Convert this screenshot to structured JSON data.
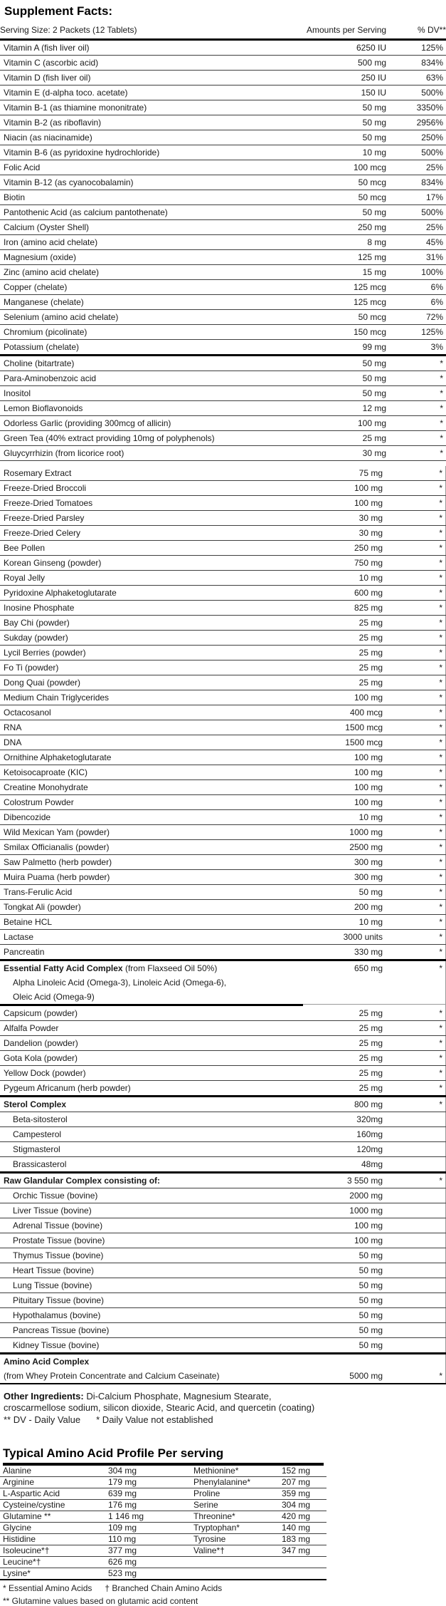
{
  "title": "Supplement Facts:",
  "colors": {
    "text": "#1a1a1a",
    "thin_line": "#3f3f3f",
    "thick_line": "#000000",
    "side_border": "#9a9a9a",
    "background": "#ffffff"
  },
  "main_table": {
    "serving_size": "Serving Size: 2 Packets (12 Tablets)",
    "col_amounts": "Amounts per Serving",
    "col_dv": "% DV**",
    "section1_rows": [
      {
        "n": "Vitamin A (fish liver oil)",
        "a": "6250 IU",
        "d": "125%"
      },
      {
        "n": "Vitamin C (ascorbic acid)",
        "a": "500 mg",
        "d": "834%"
      },
      {
        "n": "Vitamin D (fish liver oil)",
        "a": "250 IU",
        "d": "63%"
      },
      {
        "n": "Vitamin E (d-alpha toco. acetate)",
        "a": "150 IU",
        "d": "500%"
      },
      {
        "n": "Vitamin B-1 (as thiamine mononitrate)",
        "a": "50 mg",
        "d": "3350%"
      },
      {
        "n": "Vitamin B-2 (as riboflavin)",
        "a": "50 mg",
        "d": "2956%"
      },
      {
        "n": "Niacin (as niacinamide)",
        "a": "50 mg",
        "d": "250%"
      },
      {
        "n": "Vitamin B-6 (as pyridoxine hydrochloride)",
        "a": "10 mg",
        "d": "500%"
      },
      {
        "n": "Folic Acid",
        "a": "100 mcg",
        "d": "25%"
      },
      {
        "n": "Vitamin B-12 (as cyanocobalamin)",
        "a": "50 mcg",
        "d": "834%"
      },
      {
        "n": "Biotin",
        "a": "50 mcg",
        "d": "17%"
      },
      {
        "n": "Pantothenic Acid (as calcium pantothenate)",
        "a": "50 mg",
        "d": "500%"
      },
      {
        "n": "Calcium (Oyster Shell)",
        "a": "250 mg",
        "d": "25%"
      },
      {
        "n": "Iron (amino acid chelate)",
        "a": "8 mg",
        "d": "45%"
      },
      {
        "n": "Magnesium (oxide)",
        "a": "125 mg",
        "d": "31%"
      },
      {
        "n": "Zinc (amino acid chelate)",
        "a": "15 mg",
        "d": "100%"
      },
      {
        "n": "Copper (chelate)",
        "a": "125 mcg",
        "d": "6%"
      },
      {
        "n": "Manganese (chelate)",
        "a": "125 mcg",
        "d": "6%"
      },
      {
        "n": "Selenium (amino acid chelate)",
        "a": "50 mcg",
        "d": "72%"
      },
      {
        "n": "Chromium (picolinate)",
        "a": "150 mcg",
        "d": "125%"
      },
      {
        "n": "Potassium (chelate)",
        "a": "99 mg",
        "d": "3%",
        "div": "thick"
      },
      {
        "n": "Choline (bitartrate)",
        "a": "50 mg",
        "d": "*"
      },
      {
        "n": "Para-Aminobenzoic acid",
        "a": "50 mg",
        "d": "*"
      },
      {
        "n": "Inositol",
        "a": "50 mg",
        "d": "*"
      },
      {
        "n": "Lemon Bioflavonoids",
        "a": "12 mg",
        "d": "*"
      },
      {
        "n": "Odorless Garlic (providing 300mcg of allicin)",
        "a": "100 mg",
        "d": "*"
      },
      {
        "n": "Green Tea (40% extract providing 10mg of polyphenols)",
        "a": "25 mg",
        "d": "*"
      },
      {
        "n": "Gluycyrrhizin (from licorice root)",
        "a": "30 mg",
        "d": "*"
      }
    ],
    "section2_rows": [
      {
        "n": "Rosemary Extract",
        "a": "75 mg",
        "d": "*"
      },
      {
        "n": "Freeze-Dried Broccoli",
        "a": "100 mg",
        "d": "*"
      },
      {
        "n": "Freeze-Dried Tomatoes",
        "a": "100 mg",
        "d": "*"
      },
      {
        "n": "Freeze-Dried Parsley",
        "a": "30 mg",
        "d": "*"
      },
      {
        "n": "Freeze-Dried Celery",
        "a": "30 mg",
        "d": "*"
      },
      {
        "n": "Bee Pollen",
        "a": "250 mg",
        "d": "*"
      },
      {
        "n": "Korean Ginseng (powder)",
        "a": "750 mg",
        "d": "*"
      },
      {
        "n": "Royal Jelly",
        "a": "10 mg",
        "d": "*"
      },
      {
        "n": "Pyridoxine Alphaketoglutarate",
        "a": "600 mg",
        "d": "*"
      },
      {
        "n": "Inosine Phosphate",
        "a": "825 mg",
        "d": "*"
      },
      {
        "n": "Bay Chi (powder)",
        "a": "25 mg",
        "d": "*"
      },
      {
        "n": "Sukday (powder)",
        "a": "25 mg",
        "d": "*"
      },
      {
        "n": "Lycil Berries (powder)",
        "a": "25 mg",
        "d": "*"
      },
      {
        "n": "Fo Ti (powder)",
        "a": "25 mg",
        "d": "*"
      },
      {
        "n": "Dong Quai (powder)",
        "a": "25 mg",
        "d": "*"
      },
      {
        "n": "Medium Chain Triglycerides",
        "a": "100 mg",
        "d": "*"
      },
      {
        "n": "Octacosanol",
        "a": "400 mcg",
        "d": "*"
      },
      {
        "n": "RNA",
        "a": "1500 mcg",
        "d": "*"
      },
      {
        "n": "DNA",
        "a": "1500 mcg",
        "d": "*"
      },
      {
        "n": "Ornithine Alphaketoglutarate",
        "a": "100 mg",
        "d": "*"
      },
      {
        "n": "Ketoisocaproate (KIC)",
        "a": "100 mg",
        "d": "*"
      },
      {
        "n": "Creatine Monohydrate",
        "a": "100 mg",
        "d": "*"
      },
      {
        "n": "Colostrum Powder",
        "a": "100 mg",
        "d": "*"
      },
      {
        "n": "Dibencozide",
        "a": "10 mg",
        "d": "*"
      },
      {
        "n": "Wild Mexican Yam (powder)",
        "a": "1000 mg",
        "d": "*"
      },
      {
        "n": "Smilax Officianalis (powder)",
        "a": "2500 mg",
        "d": "*"
      },
      {
        "n": "Saw Palmetto (herb powder)",
        "a": "300 mg",
        "d": "*"
      },
      {
        "n": "Muira Puama (herb powder)",
        "a": "300 mg",
        "d": "*"
      },
      {
        "n": "Trans-Ferulic Acid",
        "a": "50 mg",
        "d": "*"
      },
      {
        "n": "Tongkat Ali (powder)",
        "a": "200 mg",
        "d": "*"
      },
      {
        "n": "Betaine HCL",
        "a": "10 mg",
        "d": "*"
      },
      {
        "n": "Lactase",
        "a": "3000 units",
        "d": "*"
      },
      {
        "n": "Pancreatin",
        "a": "330 mg",
        "d": "*",
        "div": "thick"
      },
      {
        "n_bold": "Essential Fatty Acid Complex",
        "n": " (from Flaxseed Oil 50%)",
        "a": "650 mg",
        "d": "*",
        "div": "none"
      },
      {
        "n": "Alpha Linoleic Acid (Omega-3), Linoleic Acid (Omega-6),",
        "indent": true,
        "div": "none"
      },
      {
        "n": "Oleic Acid (Omega-9)",
        "indent": true,
        "div": "partial"
      },
      {
        "n": "Capsicum (powder)",
        "a": "25 mg",
        "d": "*"
      },
      {
        "n": "Alfalfa Powder",
        "a": "25 mg",
        "d": "*"
      },
      {
        "n": "Dandelion (powder)",
        "a": "25 mg",
        "d": "*"
      },
      {
        "n": "Gota Kola (powder)",
        "a": "25 mg",
        "d": "*"
      },
      {
        "n": "Yellow Dock (powder)",
        "a": "25 mg",
        "d": "*"
      },
      {
        "n": "Pygeum Africanum (herb powder)",
        "a": "25 mg",
        "d": "*",
        "div": "thick"
      },
      {
        "n": "Sterol Complex",
        "bold": true,
        "a": "800 mg",
        "d": "*"
      },
      {
        "n": "Beta-sitosterol",
        "indent": true,
        "a": "320mg"
      },
      {
        "n": "Campesterol",
        "indent": true,
        "a": "160mg"
      },
      {
        "n": "Stigmasterol",
        "indent": true,
        "a": "120mg"
      },
      {
        "n": "Brassicasterol",
        "indent": true,
        "a": "48mg",
        "div": "thick"
      },
      {
        "n": "Raw Glandular Complex consisting of:",
        "bold": true,
        "a": "3 550 mg",
        "d": "*"
      },
      {
        "n": "Orchic Tissue (bovine)",
        "indent": true,
        "a": "2000 mg"
      },
      {
        "n": "Liver Tissue (bovine)",
        "indent": true,
        "a": "1000 mg"
      },
      {
        "n": "Adrenal Tissue (bovine)",
        "indent": true,
        "a": "100 mg"
      },
      {
        "n": "Prostate Tissue (bovine)",
        "indent": true,
        "a": "100 mg"
      },
      {
        "n": "Thymus Tissue (bovine)",
        "indent": true,
        "a": "50 mg"
      },
      {
        "n": "Heart Tissue (bovine)",
        "indent": true,
        "a": "50 mg"
      },
      {
        "n": "Lung Tissue (bovine)",
        "indent": true,
        "a": "50 mg"
      },
      {
        "n": "Pituitary Tissue (bovine)",
        "indent": true,
        "a": "50 mg"
      },
      {
        "n": "Hypothalamus (bovine)",
        "indent": true,
        "a": "50 mg"
      },
      {
        "n": "Pancreas Tissue (bovine)",
        "indent": true,
        "a": "50 mg"
      },
      {
        "n": "Kidney Tissue (bovine)",
        "indent": true,
        "a": "50 mg",
        "div": "thick"
      },
      {
        "n": "Amino Acid Complex",
        "bold": true,
        "div": "none"
      },
      {
        "n": "(from Whey Protein Concentrate and Calcium Caseinate)",
        "a": "5000 mg",
        "d": "*",
        "div": "last"
      }
    ]
  },
  "other_ingredients": {
    "label": "Other Ingredients:",
    "line1": "Di-Calcium Phosphate, Magnesium Stearate,",
    "line2": "croscarmellose sodium, silicon dioxide, Stearic Acid, and quercetin (coating)",
    "dv_note_1": "** DV - Daily Value",
    "dv_note_2": "* Daily Value not established"
  },
  "amino_profile": {
    "heading": "Typical Amino Acid Profile Per serving",
    "rows": [
      [
        "Alanine",
        "304 mg",
        "Methionine*",
        "152 mg"
      ],
      [
        "Arginine",
        "179 mg",
        "Phenylalanine*",
        "207 mg"
      ],
      [
        "L-Aspartic Acid",
        "639 mg",
        "Proline",
        "359 mg"
      ],
      [
        "Cysteine/cystine",
        "176 mg",
        "Serine",
        "304 mg"
      ],
      [
        "Glutamine **",
        "1 146 mg",
        "Threonine*",
        "420 mg"
      ],
      [
        "Glycine",
        "109 mg",
        "Tryptophan*",
        "140 mg"
      ],
      [
        "Histidine",
        "110 mg",
        "Tyrosine",
        "183 mg"
      ],
      [
        "Isoleucine*†",
        "377 mg",
        "Valine*†",
        "347 mg"
      ],
      [
        "Leucine*†",
        "626 mg",
        "",
        ""
      ],
      [
        "Lysine*",
        "523 mg",
        "",
        ""
      ]
    ],
    "footnote_essential": "* Essential Amino Acids",
    "footnote_branched": "† Branched Chain Amino Acids",
    "footnote_glutamine": "** Glutamine values based on glutamic acid content"
  }
}
